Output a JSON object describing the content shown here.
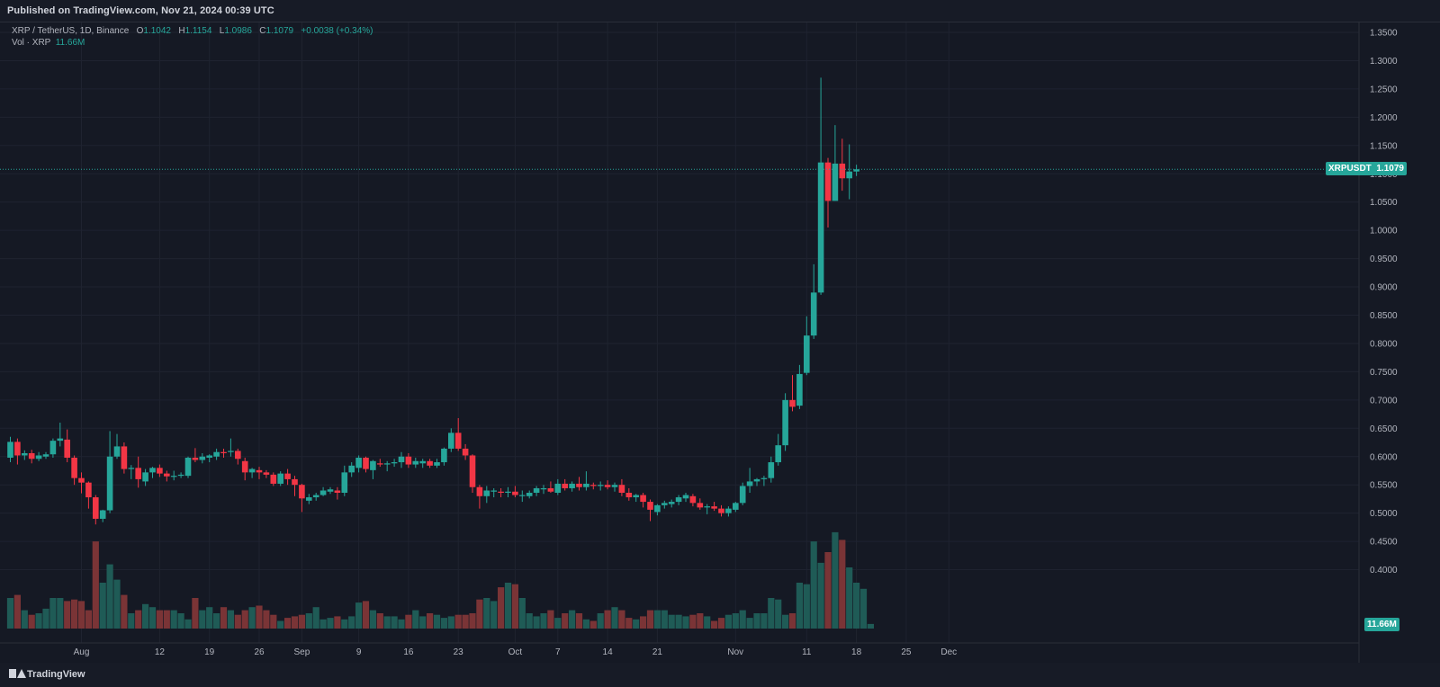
{
  "header": {
    "published": "Published on TradingView.com, Nov 21, 2024 00:39 UTC"
  },
  "legend": {
    "symbol": "XRP / TetherUS, 1D, Binance",
    "o_label": "O",
    "o": "1.1042",
    "h_label": "H",
    "h": "1.1154",
    "l_label": "L",
    "l": "1.0986",
    "c_label": "C",
    "c": "1.1079",
    "change": "+0.0038 (+0.34%)",
    "vol_label": "Vol · XRP",
    "vol_value": "11.66M"
  },
  "price_tag": {
    "symbol": "XRPUSDT",
    "value": "1.1079"
  },
  "volume_tag": "11.66M",
  "footer": {
    "brand": "TradingView"
  },
  "colors": {
    "up": "#26a69a",
    "down": "#f23645",
    "vol_up": "#1f5b56",
    "vol_down": "#7a3436"
  },
  "chart_data": {
    "type": "candlestick",
    "y_axis": {
      "min": 0.35,
      "max": 1.35,
      "ticks": [
        "1.3500",
        "1.3000",
        "1.2500",
        "1.2000",
        "1.1500",
        "1.1000",
        "1.0500",
        "1.0000",
        "0.9500",
        "0.9000",
        "0.8500",
        "0.8000",
        "0.7500",
        "0.7000",
        "0.6500",
        "0.6000",
        "0.5500",
        "0.5000",
        "0.4500",
        "0.4000"
      ]
    },
    "x_axis": {
      "start_date": "2024-07-22",
      "ticks": [
        {
          "label": "Aug",
          "index": 10
        },
        {
          "label": "12",
          "index": 21
        },
        {
          "label": "19",
          "index": 28
        },
        {
          "label": "26",
          "index": 35
        },
        {
          "label": "Sep",
          "index": 41
        },
        {
          "label": "9",
          "index": 49
        },
        {
          "label": "16",
          "index": 56
        },
        {
          "label": "23",
          "index": 63
        },
        {
          "label": "Oct",
          "index": 71
        },
        {
          "label": "7",
          "index": 77
        },
        {
          "label": "14",
          "index": 84
        },
        {
          "label": "21",
          "index": 91
        },
        {
          "label": "Nov",
          "index": 102
        },
        {
          "label": "11",
          "index": 112
        },
        {
          "label": "18",
          "index": 119
        },
        {
          "label": "25",
          "index": 126
        },
        {
          "label": "Dec",
          "index": 132
        }
      ]
    },
    "grid": true,
    "last_price": 1.1079,
    "candles": [
      [
        0.598,
        0.635,
        0.59,
        0.626
      ],
      [
        0.626,
        0.632,
        0.586,
        0.602
      ],
      [
        0.602,
        0.611,
        0.594,
        0.606
      ],
      [
        0.606,
        0.612,
        0.588,
        0.596
      ],
      [
        0.596,
        0.608,
        0.592,
        0.602
      ],
      [
        0.6,
        0.608,
        0.596,
        0.604
      ],
      [
        0.604,
        0.632,
        0.598,
        0.628
      ],
      [
        0.628,
        0.66,
        0.618,
        0.632
      ],
      [
        0.63,
        0.648,
        0.59,
        0.598
      ],
      [
        0.598,
        0.602,
        0.55,
        0.562
      ],
      [
        0.562,
        0.572,
        0.535,
        0.554
      ],
      [
        0.554,
        0.556,
        0.508,
        0.528
      ],
      [
        0.528,
        0.532,
        0.48,
        0.49
      ],
      [
        0.49,
        0.506,
        0.484,
        0.505
      ],
      [
        0.505,
        0.645,
        0.5,
        0.6
      ],
      [
        0.6,
        0.64,
        0.596,
        0.618
      ],
      [
        0.618,
        0.625,
        0.57,
        0.578
      ],
      [
        0.578,
        0.585,
        0.56,
        0.58
      ],
      [
        0.58,
        0.6,
        0.545,
        0.56
      ],
      [
        0.556,
        0.578,
        0.548,
        0.572
      ],
      [
        0.572,
        0.582,
        0.562,
        0.58
      ],
      [
        0.58,
        0.586,
        0.564,
        0.57
      ],
      [
        0.57,
        0.575,
        0.556,
        0.565
      ],
      [
        0.565,
        0.575,
        0.558,
        0.566
      ],
      [
        0.566,
        0.572,
        0.562,
        0.568
      ],
      [
        0.566,
        0.6,
        0.562,
        0.598
      ],
      [
        0.598,
        0.615,
        0.59,
        0.594
      ],
      [
        0.594,
        0.606,
        0.588,
        0.6
      ],
      [
        0.598,
        0.604,
        0.59,
        0.602
      ],
      [
        0.6,
        0.614,
        0.594,
        0.608
      ],
      [
        0.608,
        0.614,
        0.598,
        0.606
      ],
      [
        0.608,
        0.632,
        0.6,
        0.61
      ],
      [
        0.61,
        0.614,
        0.586,
        0.596
      ],
      [
        0.592,
        0.598,
        0.558,
        0.572
      ],
      [
        0.572,
        0.58,
        0.562,
        0.578
      ],
      [
        0.576,
        0.582,
        0.56,
        0.572
      ],
      [
        0.572,
        0.576,
        0.562,
        0.568
      ],
      [
        0.568,
        0.572,
        0.548,
        0.552
      ],
      [
        0.552,
        0.574,
        0.548,
        0.57
      ],
      [
        0.57,
        0.578,
        0.55,
        0.56
      ],
      [
        0.56,
        0.566,
        0.53,
        0.55
      ],
      [
        0.55,
        0.552,
        0.502,
        0.526
      ],
      [
        0.522,
        0.534,
        0.516,
        0.528
      ],
      [
        0.528,
        0.536,
        0.522,
        0.532
      ],
      [
        0.532,
        0.546,
        0.53,
        0.54
      ],
      [
        0.538,
        0.546,
        0.534,
        0.542
      ],
      [
        0.54,
        0.546,
        0.524,
        0.536
      ],
      [
        0.536,
        0.584,
        0.53,
        0.572
      ],
      [
        0.572,
        0.59,
        0.564,
        0.584
      ],
      [
        0.58,
        0.602,
        0.572,
        0.598
      ],
      [
        0.598,
        0.6,
        0.572,
        0.578
      ],
      [
        0.576,
        0.594,
        0.56,
        0.592
      ],
      [
        0.588,
        0.596,
        0.582,
        0.586
      ],
      [
        0.586,
        0.592,
        0.574,
        0.588
      ],
      [
        0.588,
        0.596,
        0.582,
        0.59
      ],
      [
        0.59,
        0.608,
        0.58,
        0.6
      ],
      [
        0.6,
        0.606,
        0.58,
        0.586
      ],
      [
        0.586,
        0.598,
        0.58,
        0.592
      ],
      [
        0.588,
        0.596,
        0.58,
        0.592
      ],
      [
        0.592,
        0.596,
        0.58,
        0.584
      ],
      [
        0.584,
        0.596,
        0.58,
        0.59
      ],
      [
        0.59,
        0.616,
        0.584,
        0.614
      ],
      [
        0.614,
        0.65,
        0.608,
        0.642
      ],
      [
        0.642,
        0.668,
        0.61,
        0.614
      ],
      [
        0.614,
        0.622,
        0.594,
        0.602
      ],
      [
        0.602,
        0.604,
        0.536,
        0.546
      ],
      [
        0.546,
        0.55,
        0.508,
        0.53
      ],
      [
        0.53,
        0.548,
        0.518,
        0.54
      ],
      [
        0.538,
        0.544,
        0.528,
        0.54
      ],
      [
        0.538,
        0.544,
        0.528,
        0.536
      ],
      [
        0.536,
        0.546,
        0.528,
        0.538
      ],
      [
        0.538,
        0.548,
        0.528,
        0.532
      ],
      [
        0.532,
        0.54,
        0.52,
        0.532
      ],
      [
        0.53,
        0.54,
        0.526,
        0.536
      ],
      [
        0.536,
        0.548,
        0.53,
        0.544
      ],
      [
        0.542,
        0.55,
        0.534,
        0.544
      ],
      [
        0.544,
        0.556,
        0.536,
        0.538
      ],
      [
        0.536,
        0.56,
        0.532,
        0.552
      ],
      [
        0.552,
        0.56,
        0.54,
        0.544
      ],
      [
        0.544,
        0.556,
        0.538,
        0.552
      ],
      [
        0.552,
        0.564,
        0.54,
        0.546
      ],
      [
        0.546,
        0.574,
        0.54,
        0.552
      ],
      [
        0.55,
        0.554,
        0.542,
        0.548
      ],
      [
        0.548,
        0.556,
        0.54,
        0.55
      ],
      [
        0.55,
        0.558,
        0.542,
        0.546
      ],
      [
        0.546,
        0.554,
        0.538,
        0.55
      ],
      [
        0.55,
        0.56,
        0.53,
        0.536
      ],
      [
        0.536,
        0.544,
        0.522,
        0.528
      ],
      [
        0.528,
        0.534,
        0.52,
        0.532
      ],
      [
        0.532,
        0.536,
        0.51,
        0.52
      ],
      [
        0.52,
        0.524,
        0.486,
        0.506
      ],
      [
        0.502,
        0.516,
        0.496,
        0.514
      ],
      [
        0.514,
        0.522,
        0.508,
        0.518
      ],
      [
        0.516,
        0.524,
        0.51,
        0.52
      ],
      [
        0.52,
        0.532,
        0.514,
        0.528
      ],
      [
        0.526,
        0.536,
        0.52,
        0.532
      ],
      [
        0.53,
        0.534,
        0.512,
        0.518
      ],
      [
        0.518,
        0.526,
        0.506,
        0.51
      ],
      [
        0.51,
        0.516,
        0.498,
        0.512
      ],
      [
        0.512,
        0.52,
        0.504,
        0.508
      ],
      [
        0.508,
        0.514,
        0.494,
        0.5
      ],
      [
        0.5,
        0.512,
        0.494,
        0.508
      ],
      [
        0.506,
        0.52,
        0.502,
        0.518
      ],
      [
        0.518,
        0.554,
        0.514,
        0.548
      ],
      [
        0.548,
        0.58,
        0.536,
        0.556
      ],
      [
        0.556,
        0.562,
        0.548,
        0.56
      ],
      [
        0.56,
        0.566,
        0.548,
        0.562
      ],
      [
        0.562,
        0.6,
        0.554,
        0.59
      ],
      [
        0.59,
        0.64,
        0.584,
        0.62
      ],
      [
        0.62,
        0.712,
        0.61,
        0.7
      ],
      [
        0.7,
        0.744,
        0.68,
        0.688
      ],
      [
        0.69,
        0.762,
        0.684,
        0.746
      ],
      [
        0.748,
        0.848,
        0.744,
        0.814
      ],
      [
        0.814,
        0.94,
        0.808,
        0.89
      ],
      [
        0.89,
        1.27,
        0.886,
        1.12
      ],
      [
        1.12,
        1.128,
        1.005,
        1.052
      ],
      [
        1.052,
        1.186,
        1.052,
        1.118
      ],
      [
        1.118,
        1.162,
        1.07,
        1.092
      ],
      [
        1.092,
        1.152,
        1.055,
        1.104
      ],
      [
        1.104,
        1.116,
        1.096,
        1.108
      ]
    ],
    "volume_relative": [
      0.2,
      0.22,
      0.12,
      0.09,
      0.1,
      0.13,
      0.2,
      0.2,
      0.18,
      0.19,
      0.18,
      0.12,
      0.57,
      0.3,
      0.42,
      0.32,
      0.22,
      0.1,
      0.12,
      0.16,
      0.14,
      0.12,
      0.12,
      0.12,
      0.1,
      0.06,
      0.2,
      0.12,
      0.14,
      0.1,
      0.14,
      0.12,
      0.09,
      0.12,
      0.14,
      0.15,
      0.12,
      0.09,
      0.05,
      0.07,
      0.08,
      0.09,
      0.1,
      0.14,
      0.06,
      0.07,
      0.08,
      0.06,
      0.08,
      0.17,
      0.18,
      0.12,
      0.1,
      0.08,
      0.08,
      0.06,
      0.09,
      0.12,
      0.08,
      0.1,
      0.09,
      0.07,
      0.08,
      0.09,
      0.09,
      0.1,
      0.19,
      0.2,
      0.18,
      0.27,
      0.3,
      0.29,
      0.2,
      0.1,
      0.08,
      0.1,
      0.12,
      0.07,
      0.1,
      0.12,
      0.1,
      0.06,
      0.05,
      0.1,
      0.12,
      0.14,
      0.12,
      0.07,
      0.06,
      0.08,
      0.12,
      0.12,
      0.12,
      0.09,
      0.09,
      0.08,
      0.09,
      0.1,
      0.08,
      0.05,
      0.07,
      0.09,
      0.1,
      0.12,
      0.07,
      0.1,
      0.1,
      0.2,
      0.19,
      0.09,
      0.1,
      0.3,
      0.29,
      0.57,
      0.43,
      0.5,
      0.63,
      0.58,
      0.4,
      0.3,
      0.26,
      0.03
    ]
  }
}
